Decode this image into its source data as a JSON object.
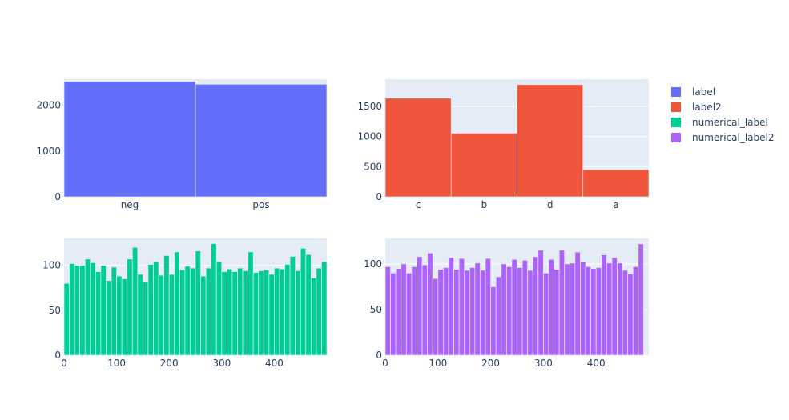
{
  "chart_data": [
    {
      "type": "bar",
      "series": [
        {
          "name": "label",
          "color": "#636efa"
        }
      ],
      "categories": [
        "neg",
        "pos"
      ],
      "values": [
        2520,
        2460
      ],
      "ylim": [
        0,
        2570
      ],
      "yticks": [
        0,
        1000,
        2000
      ],
      "grid": true
    },
    {
      "type": "bar",
      "series": [
        {
          "name": "label2",
          "color": "#ef553b"
        }
      ],
      "categories": [
        "c",
        "b",
        "d",
        "a"
      ],
      "values": [
        1635,
        1055,
        1860,
        450
      ],
      "ylim": [
        0,
        1950
      ],
      "yticks": [
        0,
        500,
        1000,
        1500
      ],
      "grid": true
    },
    {
      "type": "bar",
      "series": [
        {
          "name": "numerical_label",
          "color": "#00cc96"
        }
      ],
      "bin_width": 10,
      "x_start": 0,
      "values": [
        80,
        102,
        100,
        100,
        107,
        103,
        93,
        100,
        83,
        98,
        88,
        85,
        107,
        120,
        90,
        82,
        101,
        104,
        89,
        111,
        90,
        115,
        95,
        99,
        97,
        116,
        88,
        97,
        124,
        104,
        93,
        96,
        93,
        97,
        94,
        115,
        92,
        94,
        95,
        90,
        97,
        96,
        101,
        110,
        94,
        119,
        112,
        86,
        97,
        104
      ],
      "xlim": [
        0,
        500
      ],
      "xticks": [
        0,
        100,
        200,
        300,
        400
      ],
      "ylim": [
        0,
        130
      ],
      "yticks": [
        0,
        50,
        100
      ],
      "grid": true
    },
    {
      "type": "bar",
      "series": [
        {
          "name": "numerical_label2",
          "color": "#ab63fa"
        }
      ],
      "bin_width": 10,
      "x_start": 0,
      "values": [
        97,
        90,
        95,
        100,
        90,
        97,
        108,
        99,
        112,
        84,
        94,
        96,
        107,
        94,
        106,
        93,
        96,
        101,
        93,
        106,
        75,
        86,
        100,
        97,
        105,
        96,
        104,
        93,
        108,
        115,
        90,
        105,
        94,
        115,
        100,
        101,
        113,
        102,
        97,
        95,
        96,
        110,
        101,
        107,
        101,
        93,
        89,
        97,
        122
      ],
      "xlim": [
        0,
        500
      ],
      "xticks": [
        0,
        100,
        200,
        300,
        400
      ],
      "ylim": [
        0,
        128
      ],
      "yticks": [
        0,
        50,
        100
      ],
      "grid": true
    }
  ],
  "legend": {
    "placement": "right",
    "items": [
      {
        "label": "label",
        "color": "#636efa"
      },
      {
        "label": "label2",
        "color": "#ef553b"
      },
      {
        "label": "numerical_label",
        "color": "#00cc96"
      },
      {
        "label": "numerical_label2",
        "color": "#ab63fa"
      }
    ]
  },
  "style": {
    "plot_bg": "#e5ecf6",
    "grid_color": "#ffffff",
    "tick_color": "#2a3f5f",
    "bar_edge": "#e5ecf6"
  }
}
